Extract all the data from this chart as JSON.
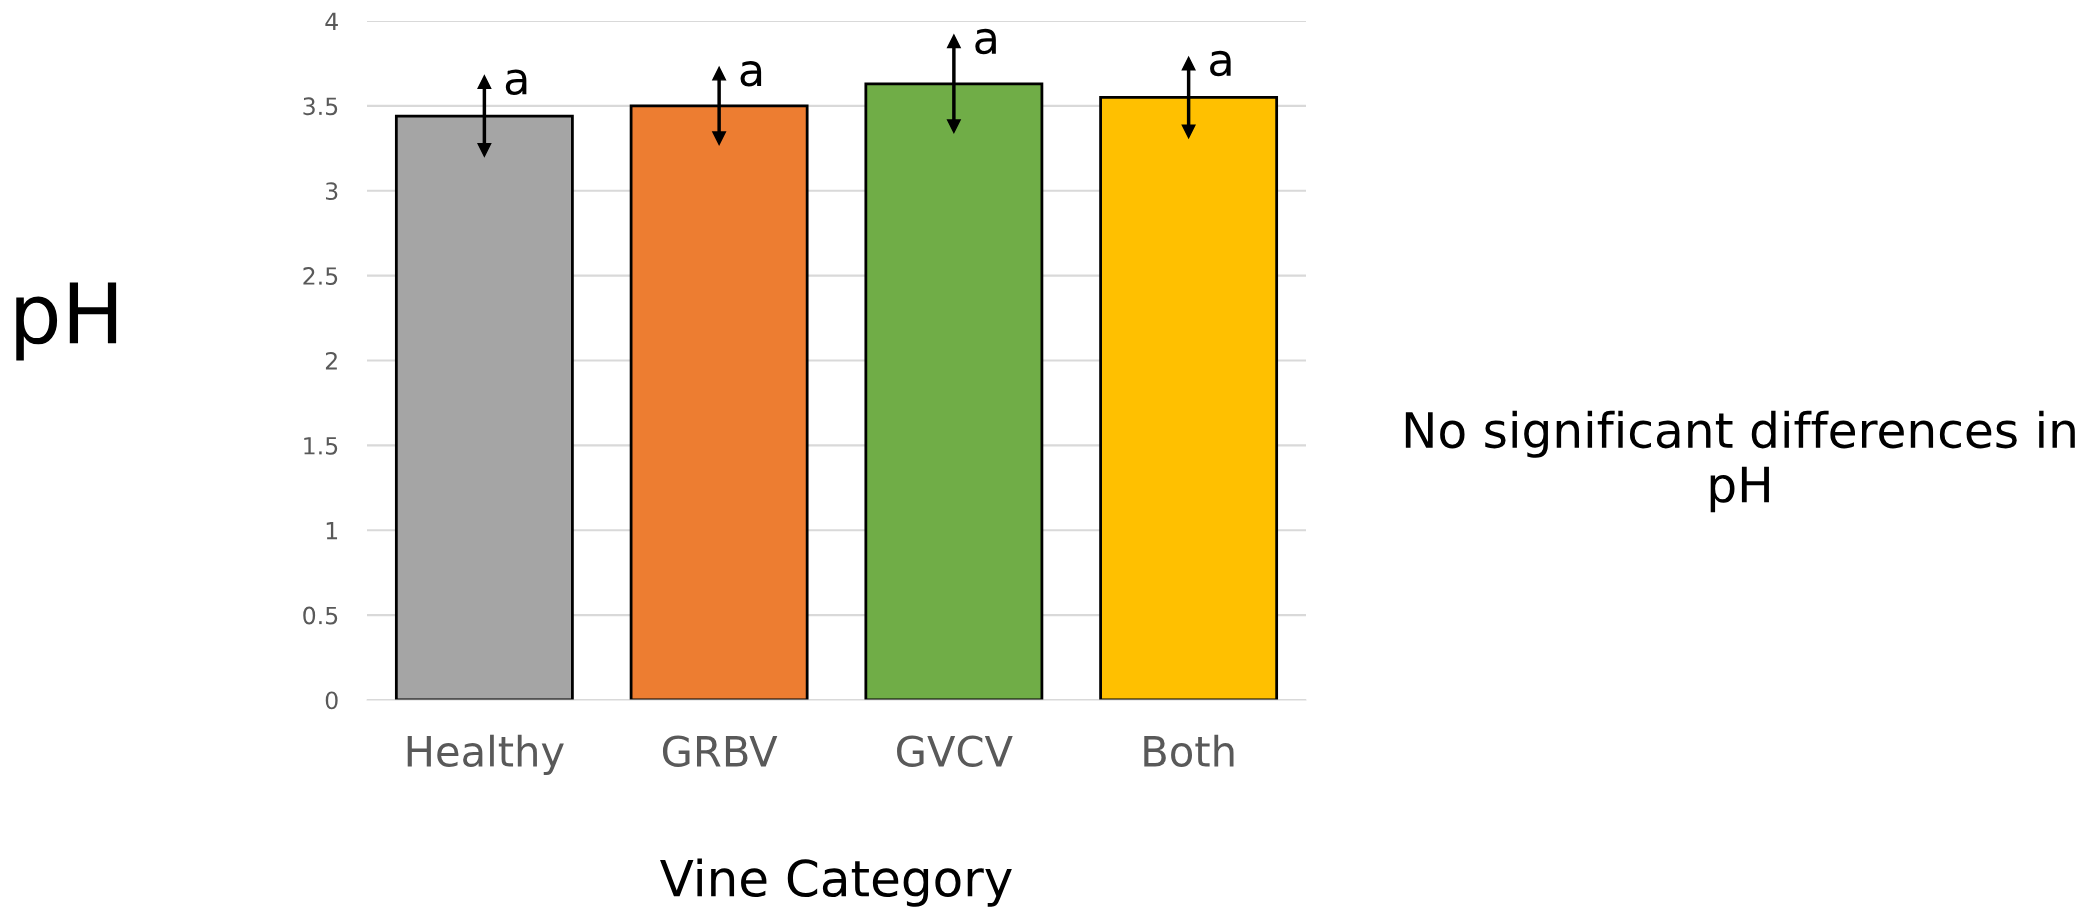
{
  "chart_data": {
    "type": "bar",
    "xlabel": "Vine Category",
    "ylabel": "pH",
    "categories": [
      "Healthy",
      "GRBV",
      "GVCV",
      "Both"
    ],
    "values": [
      3.44,
      3.5,
      3.63,
      3.55
    ],
    "colors": [
      "#a5a5a5",
      "#ed7d31",
      "#70ad47",
      "#ffc000"
    ],
    "errors": [
      0.2,
      0.19,
      0.25,
      0.2
    ],
    "ylim": [
      0,
      4
    ],
    "yticks": [
      0,
      0.5,
      1,
      1.5,
      2,
      2.5,
      3,
      3.5,
      4
    ],
    "grid": "y",
    "legend": false,
    "annotations": [
      "a",
      "a",
      "a",
      "a",
      "No significant differences in pH"
    ]
  }
}
